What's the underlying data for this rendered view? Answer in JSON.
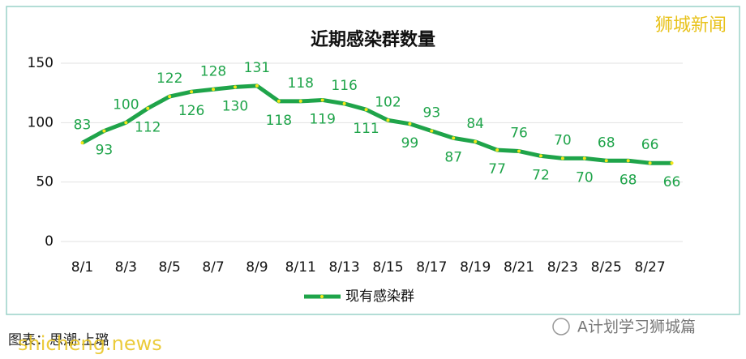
{
  "chart_data": {
    "type": "line",
    "title": "近期感染群数量",
    "categories": [
      "8/1",
      null,
      "8/3",
      null,
      "8/5",
      null,
      "8/7",
      null,
      "8/9",
      null,
      "8/11",
      null,
      "8/13",
      null,
      "8/15",
      null,
      "8/17",
      null,
      "8/19",
      null,
      "8/21",
      null,
      "8/23",
      null,
      "8/25",
      null,
      "8/27",
      null
    ],
    "series": [
      {
        "name": "现有感染群",
        "color": "#1fa44a",
        "marker_color": "#f5e61a",
        "values": [
          83,
          93,
          100,
          112,
          122,
          126,
          128,
          130,
          131,
          118,
          118,
          119,
          116,
          111,
          102,
          99,
          93,
          87,
          84,
          77,
          76,
          72,
          70,
          70,
          68,
          68,
          66,
          66
        ]
      }
    ],
    "ylim": [
      0,
      150
    ],
    "yticks": [
      0,
      50,
      100,
      150
    ],
    "grid": true,
    "legend": "bottom"
  },
  "page": {
    "watermark": "狮城新闻",
    "source": "图表：思潮·上璐",
    "site": "shicheng.news",
    "account": "A计划学习狮城篇"
  }
}
